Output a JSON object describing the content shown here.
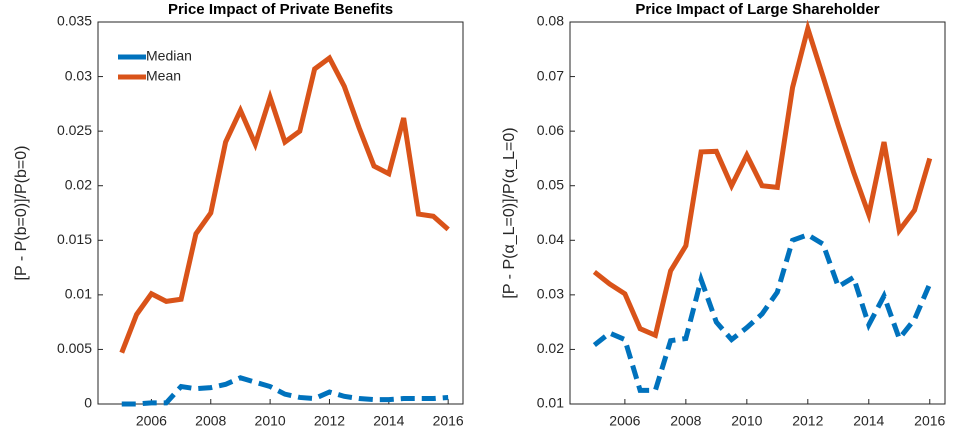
{
  "chart_data": [
    {
      "type": "line",
      "title": "Price Impact of Private Benefits",
      "ylabel": "[P - P(b=0)]/P(b=0)",
      "x": [
        2005,
        2005.5,
        2006,
        2006.5,
        2007,
        2007.5,
        2008,
        2008.5,
        2009,
        2009.5,
        2010,
        2010.5,
        2011,
        2011.5,
        2012,
        2012.5,
        2013,
        2013.5,
        2014,
        2014.5,
        2015,
        2015.5,
        2016
      ],
      "series": [
        {
          "name": "Median",
          "color": "#0072BD",
          "line_style": "dashed",
          "values": [
            0,
            0,
            0.0001,
            0.0001,
            0.0016,
            0.0014,
            0.0015,
            0.0018,
            0.0024,
            0.002,
            0.0016,
            0.0009,
            0.0006,
            0.0005,
            0.0011,
            0.0007,
            0.0005,
            0.0004,
            0.0004,
            0.0005,
            0.0005,
            0.0005,
            0.0006
          ]
        },
        {
          "name": "Mean",
          "color": "#D95319",
          "line_style": "solid",
          "values": [
            0.0047,
            0.0082,
            0.0101,
            0.0094,
            0.0096,
            0.0156,
            0.0175,
            0.024,
            0.0269,
            0.0238,
            0.0281,
            0.024,
            0.025,
            0.0307,
            0.0317,
            0.0291,
            0.0253,
            0.0218,
            0.0211,
            0.0262,
            0.0174,
            0.0172,
            0.016
          ]
        }
      ],
      "xlim": [
        2004.2,
        2016.5
      ],
      "xticks": [
        2006,
        2008,
        2010,
        2012,
        2014,
        2016
      ],
      "ylim": [
        0,
        0.035
      ],
      "yticks": [
        0,
        0.005,
        0.01,
        0.015,
        0.02,
        0.025,
        0.03,
        0.035
      ],
      "legend": "top-left"
    },
    {
      "type": "line",
      "title": "Price Impact of Large Shareholder",
      "ylabel": "[P - P(α_L=0)]/P(α_L=0)",
      "x": [
        2005,
        2005.5,
        2006,
        2006.5,
        2007,
        2007.5,
        2008,
        2008.5,
        2009,
        2009.5,
        2010,
        2010.5,
        2011,
        2011.5,
        2012,
        2012.5,
        2013,
        2013.5,
        2014,
        2014.5,
        2015,
        2015.5,
        2016
      ],
      "series": [
        {
          "color": "#0072BD",
          "line_style": "dashed",
          "values": [
            0.0208,
            0.023,
            0.0218,
            0.0125,
            0.0125,
            0.0216,
            0.022,
            0.0328,
            0.025,
            0.0218,
            0.024,
            0.0265,
            0.0305,
            0.04,
            0.041,
            0.0393,
            0.0315,
            0.0332,
            0.0245,
            0.0298,
            0.022,
            0.0255,
            0.032
          ]
        },
        {
          "color": "#D95319",
          "line_style": "solid",
          "values": [
            0.0342,
            0.032,
            0.0302,
            0.0238,
            0.0226,
            0.0344,
            0.039,
            0.0562,
            0.0563,
            0.05,
            0.0556,
            0.05,
            0.0497,
            0.068,
            0.0788,
            0.07,
            0.061,
            0.0525,
            0.0447,
            0.058,
            0.0418,
            0.0455,
            0.055
          ]
        }
      ],
      "xlim": [
        2004.2,
        2016.5
      ],
      "xticks": [
        2006,
        2008,
        2010,
        2012,
        2014,
        2016
      ],
      "ylim": [
        0.01,
        0.08
      ],
      "yticks": [
        0.01,
        0.02,
        0.03,
        0.04,
        0.05,
        0.06,
        0.07,
        0.08
      ]
    }
  ]
}
